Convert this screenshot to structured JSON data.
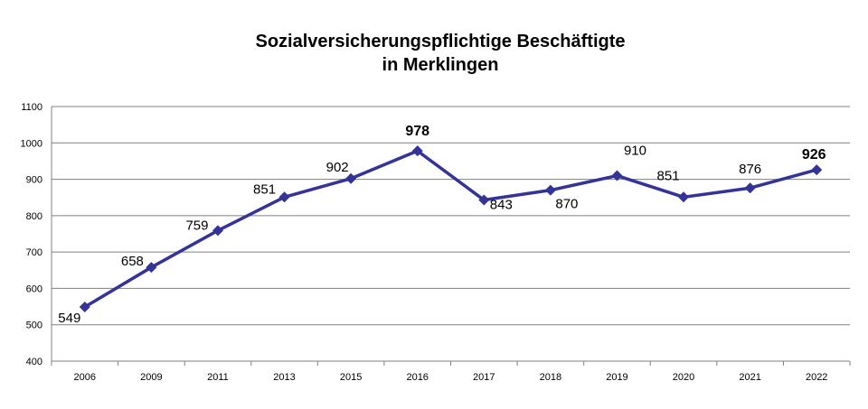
{
  "chart_data": {
    "type": "line",
    "title_line1": "Sozialversicherungspflichtige Beschäftigte",
    "title_line2": "in Merklingen",
    "categories": [
      "2006",
      "2009",
      "2011",
      "2013",
      "2015",
      "2016",
      "2017",
      "2018",
      "2019",
      "2020",
      "2021",
      "2022"
    ],
    "values": [
      549,
      658,
      759,
      851,
      902,
      978,
      843,
      870,
      910,
      851,
      876,
      926
    ],
    "highlighted": [
      978,
      926
    ],
    "ylim": [
      400,
      1100
    ],
    "yticks": [
      400,
      500,
      600,
      700,
      800,
      900,
      1000,
      1100
    ],
    "grid": true,
    "line_color": "#333399"
  }
}
